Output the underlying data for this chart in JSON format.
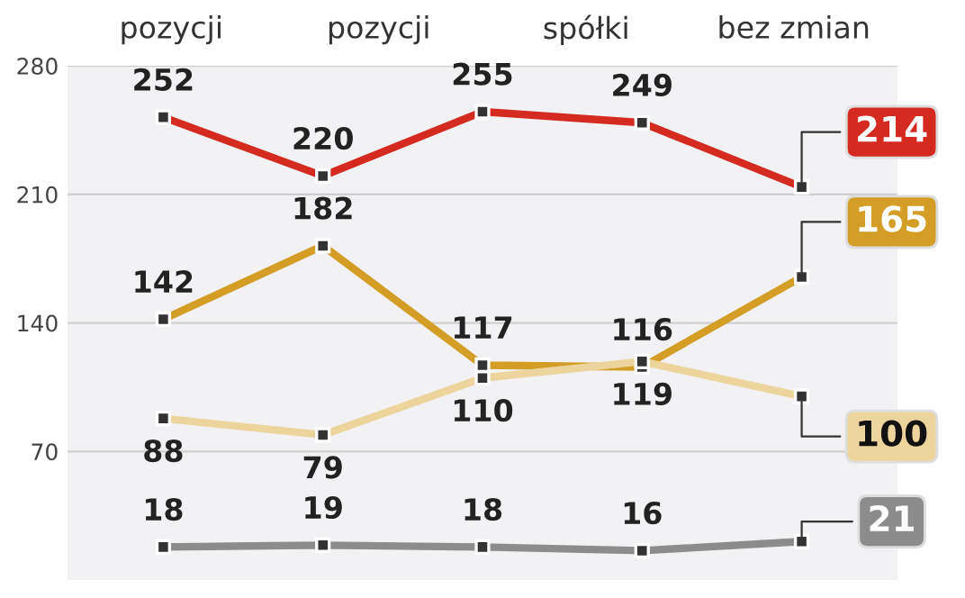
{
  "chart_data": {
    "type": "line",
    "categories": [
      null,
      null,
      null,
      null,
      null
    ],
    "series": [
      {
        "color": "#d42a20",
        "values": [
          252,
          220,
          255,
          249,
          214
        ]
      },
      {
        "color": "#d39d26",
        "values": [
          142,
          182,
          117,
          116,
          165
        ]
      },
      {
        "color": "#ecd49c",
        "values": [
          88,
          79,
          110,
          119,
          100
        ]
      },
      {
        "color": "#8c8c8c",
        "values": [
          18,
          19,
          18,
          16,
          21
        ]
      }
    ],
    "annotations": [
      "pozycji",
      "pozycji",
      "spółki",
      "bez zmian"
    ],
    "ylim": [
      0,
      280
    ],
    "yticks": [
      70,
      140,
      210,
      280
    ],
    "grid": "y",
    "data_labels": true,
    "marker": "square",
    "tick_labels": "y"
  }
}
